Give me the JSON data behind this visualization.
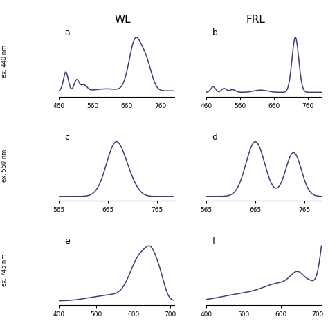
{
  "title_left": "WL",
  "title_right": "FRL",
  "line_color": "#3a3d7a",
  "line_width": 1.1,
  "bg_color": "#ffffff",
  "panel_labels": [
    [
      "a",
      "b"
    ],
    [
      "c",
      "d"
    ],
    [
      "e",
      "f"
    ]
  ],
  "excitation_labels": [
    "ex. 440 nm",
    "ex. 550 nm",
    "ex. 745 nm"
  ],
  "row0_xlim": [
    460,
    800
  ],
  "row0_xticks": [
    460,
    560,
    660,
    760
  ],
  "row1_xlim": [
    565,
    800
  ],
  "row1_xticks": [
    565,
    665,
    765
  ],
  "row2_xlim": [
    400,
    710
  ],
  "row2_xticks": [
    400,
    500,
    600,
    700
  ],
  "figsize": [
    4.74,
    4.74
  ],
  "dpi": 100
}
